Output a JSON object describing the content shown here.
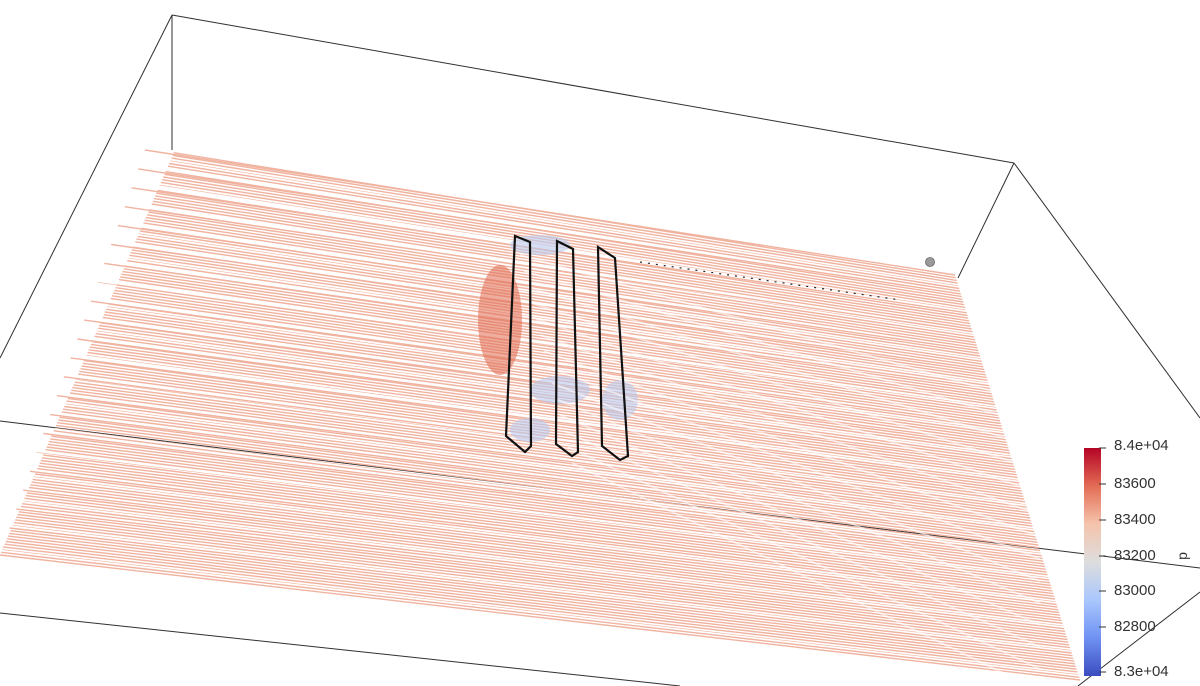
{
  "scene": {
    "field": "p",
    "streamline_color_base": "#f0b3a0",
    "streamline_color_high": "#e06a50",
    "streamline_color_low": "#b9c8ec",
    "frame_color": "#303030",
    "cutout_outline_color": "#000000"
  },
  "colorbar": {
    "title": "p",
    "colors": [
      "#b40426",
      "#e36c55",
      "#f5c4ac",
      "#dddddd",
      "#aac7fd",
      "#6f92f3",
      "#3b4cc0"
    ],
    "max_label": "8.4e+04",
    "tick_labels": [
      "83600",
      "83400",
      "83200",
      "83000",
      "82800"
    ],
    "min_label": "8.3e+04"
  }
}
